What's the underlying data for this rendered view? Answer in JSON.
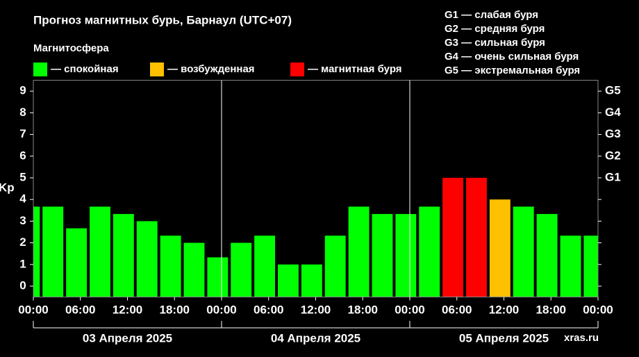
{
  "chart_data": {
    "type": "bar",
    "title": "Прогноз магнитных бурь, Барнаул (UTC+07)",
    "subtitle": "Магнитосфера",
    "ylabel": "Kp",
    "xlim": [
      0,
      72
    ],
    "xticks": [
      {
        "value": 0,
        "label": "00:00"
      },
      {
        "value": 6,
        "label": "06:00"
      },
      {
        "value": 12,
        "label": "12:00"
      },
      {
        "value": 18,
        "label": "18:00"
      },
      {
        "value": 24,
        "label": "00:00"
      },
      {
        "value": 30,
        "label": "06:00"
      },
      {
        "value": 36,
        "label": "12:00"
      },
      {
        "value": 42,
        "label": "18:00"
      },
      {
        "value": 48,
        "label": "00:00"
      },
      {
        "value": 54,
        "label": "06:00"
      },
      {
        "value": 60,
        "label": "12:00"
      },
      {
        "value": 66,
        "label": "18:00"
      },
      {
        "value": 72,
        "label": "00:00"
      }
    ],
    "day_boundaries": [
      24,
      48
    ],
    "dates": [
      "03 Апреля 2025",
      "04 Апреля 2025",
      "05 Апреля 2025"
    ],
    "ylim": [
      -0.5,
      9.5
    ],
    "yticks": [
      0,
      1,
      2,
      3,
      4,
      5,
      6,
      7,
      8,
      9
    ],
    "y2ticks": [
      {
        "value": 5,
        "label": "G1"
      },
      {
        "value": 6,
        "label": "G2"
      },
      {
        "value": 7,
        "label": "G3"
      },
      {
        "value": 8,
        "label": "G4"
      },
      {
        "value": 9,
        "label": "G5"
      }
    ],
    "x": [
      -2,
      1,
      4,
      7,
      10,
      13,
      16,
      19,
      22,
      25,
      28,
      31,
      34,
      37,
      40,
      43,
      46,
      49,
      52,
      55,
      58,
      61,
      64,
      67,
      70
    ],
    "series": [
      {
        "name": "— спокойная",
        "color": "#00ff00",
        "values": [
          3.67,
          3.67,
          2.67,
          3.67,
          3.33,
          3,
          2.33,
          2,
          1.33,
          2,
          2.33,
          1,
          1,
          2.33,
          3.67,
          3.33,
          3.33,
          3.67,
          null,
          null,
          null,
          3.67,
          3.33,
          2.33,
          2.33
        ]
      },
      {
        "name": "— возбужденная",
        "color": "#ffc000",
        "values": [
          null,
          null,
          null,
          null,
          null,
          null,
          null,
          null,
          null,
          null,
          null,
          null,
          null,
          null,
          null,
          null,
          null,
          null,
          null,
          null,
          4,
          null,
          null,
          null,
          null
        ]
      },
      {
        "name": "— магнитная буря",
        "color": "#ff0000",
        "values": [
          null,
          null,
          null,
          null,
          null,
          null,
          null,
          null,
          null,
          null,
          null,
          null,
          null,
          null,
          null,
          null,
          null,
          null,
          5,
          5,
          null,
          null,
          null,
          null,
          null
        ]
      }
    ],
    "g_scale": [
      "G1 — слабая буря",
      "G2 — средняя буря",
      "G3 — сильная буря",
      "G4 — очень сильная буря",
      "G5 — экстремальная буря"
    ],
    "watermark": "xras.ru"
  }
}
